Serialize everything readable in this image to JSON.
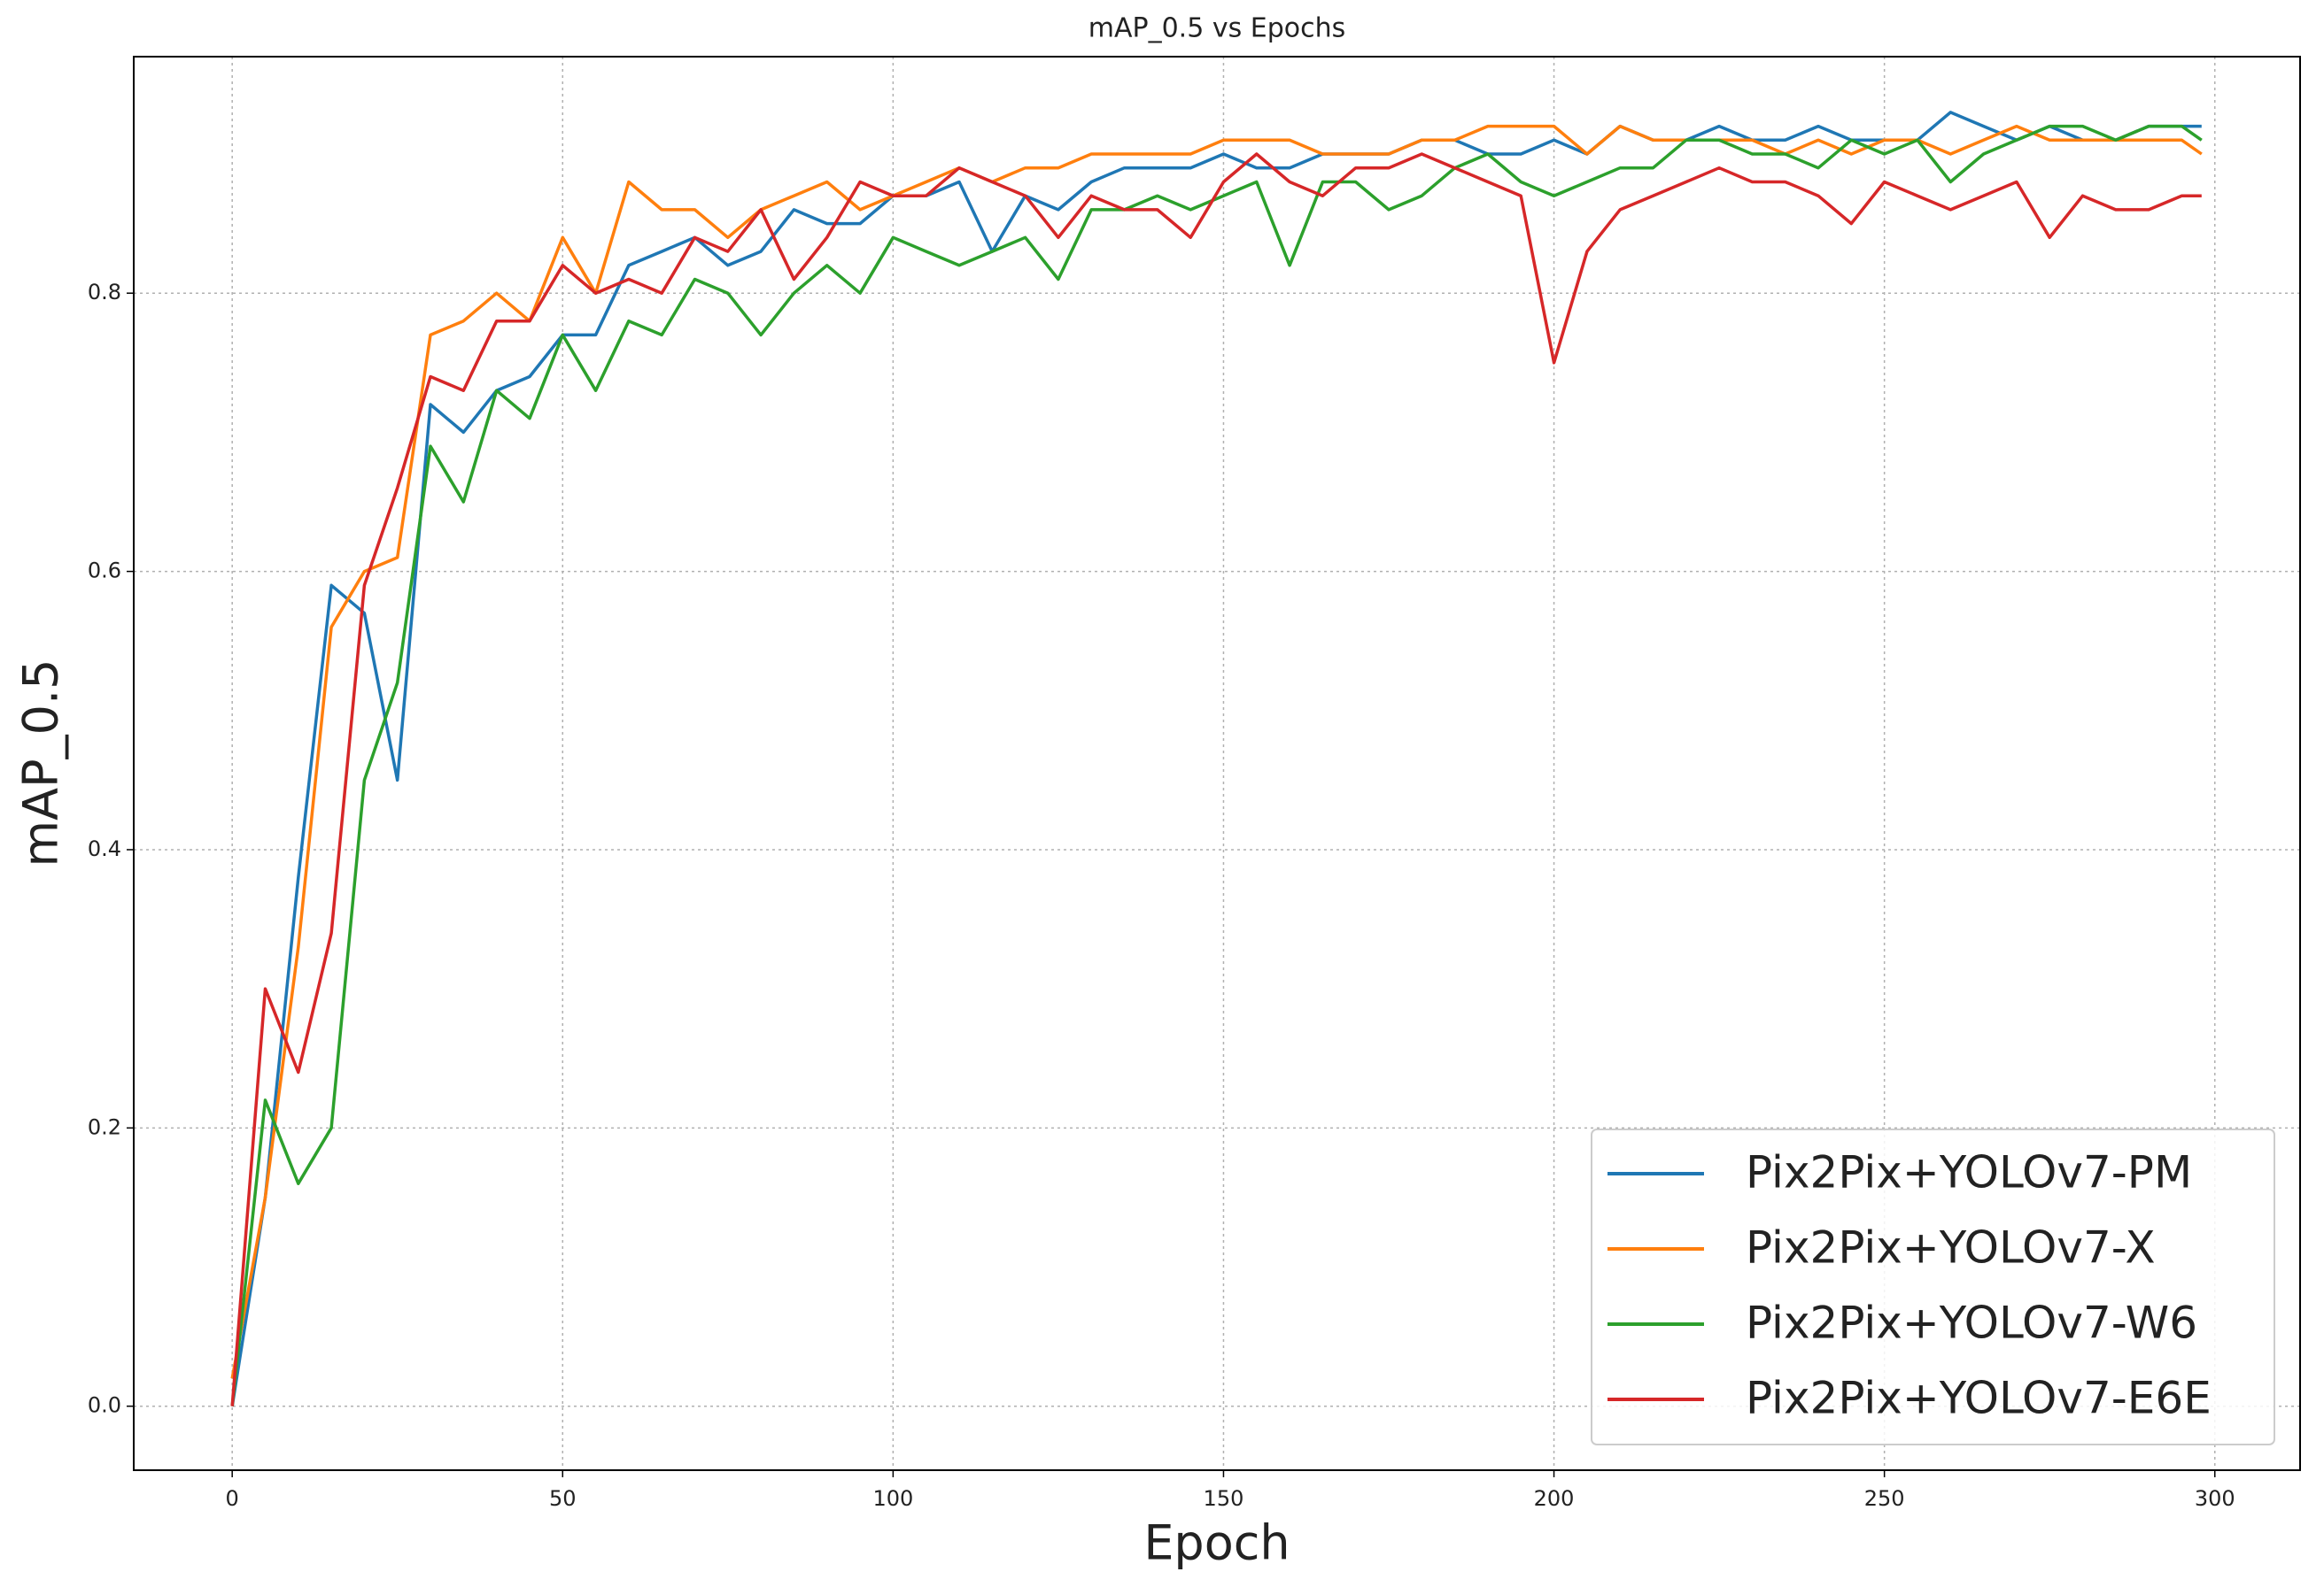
{
  "chart_data": {
    "type": "line",
    "title": "mAP_0.5 vs Epochs",
    "x_label": "Epoch",
    "y_label": "mAP_0.5",
    "x": [
      0,
      5,
      10,
      15,
      20,
      25,
      30,
      35,
      40,
      45,
      50,
      55,
      60,
      65,
      70,
      75,
      80,
      85,
      90,
      95,
      100,
      105,
      110,
      115,
      120,
      125,
      130,
      135,
      140,
      145,
      150,
      155,
      160,
      165,
      170,
      175,
      180,
      185,
      190,
      195,
      200,
      205,
      210,
      215,
      220,
      225,
      230,
      235,
      240,
      245,
      250,
      255,
      260,
      265,
      270,
      275,
      280,
      285,
      290,
      295,
      298
    ],
    "series": [
      {
        "name": "Pix2Pix+YOLOv7-PM",
        "color": "#1f77b4",
        "values": [
          0,
          0.15,
          0.38,
          0.59,
          0.57,
          0.45,
          0.72,
          0.7,
          0.73,
          0.74,
          0.77,
          0.77,
          0.82,
          0.83,
          0.84,
          0.82,
          0.83,
          0.86,
          0.85,
          0.85,
          0.87,
          0.87,
          0.88,
          0.83,
          0.87,
          0.86,
          0.88,
          0.89,
          0.89,
          0.89,
          0.9,
          0.89,
          0.89,
          0.9,
          0.9,
          0.9,
          0.91,
          0.91,
          0.9,
          0.9,
          0.91,
          0.9,
          0.92,
          0.91,
          0.91,
          0.92,
          0.91,
          0.91,
          0.92,
          0.91,
          0.91,
          0.91,
          0.93,
          0.92,
          0.91,
          0.92,
          0.91,
          0.91,
          0.92,
          0.92,
          0.92
        ]
      },
      {
        "name": "Pix2Pix+YOLOv7-X",
        "color": "#ff7f0e",
        "values": [
          0.02,
          0.15,
          0.33,
          0.56,
          0.6,
          0.61,
          0.77,
          0.78,
          0.8,
          0.78,
          0.84,
          0.8,
          0.88,
          0.86,
          0.86,
          0.84,
          0.86,
          0.87,
          0.88,
          0.86,
          0.87,
          0.88,
          0.89,
          0.88,
          0.89,
          0.89,
          0.9,
          0.9,
          0.9,
          0.9,
          0.91,
          0.91,
          0.91,
          0.9,
          0.9,
          0.9,
          0.91,
          0.91,
          0.92,
          0.92,
          0.92,
          0.9,
          0.92,
          0.91,
          0.91,
          0.91,
          0.91,
          0.9,
          0.91,
          0.9,
          0.91,
          0.91,
          0.9,
          0.91,
          0.92,
          0.91,
          0.91,
          0.91,
          0.91,
          0.91,
          0.9
        ]
      },
      {
        "name": "Pix2Pix+YOLOv7-W6",
        "color": "#2ca02c",
        "values": [
          0,
          0.22,
          0.16,
          0.2,
          0.45,
          0.52,
          0.69,
          0.65,
          0.73,
          0.71,
          0.77,
          0.73,
          0.78,
          0.77,
          0.81,
          0.8,
          0.77,
          0.8,
          0.82,
          0.8,
          0.84,
          0.83,
          0.82,
          0.83,
          0.84,
          0.81,
          0.86,
          0.86,
          0.87,
          0.86,
          0.87,
          0.88,
          0.82,
          0.88,
          0.88,
          0.86,
          0.87,
          0.89,
          0.9,
          0.88,
          0.87,
          0.88,
          0.89,
          0.89,
          0.91,
          0.91,
          0.9,
          0.9,
          0.89,
          0.91,
          0.9,
          0.91,
          0.88,
          0.9,
          0.91,
          0.92,
          0.92,
          0.91,
          0.92,
          0.92,
          0.91
        ]
      },
      {
        "name": "Pix2Pix+YOLOv7-E6E",
        "color": "#d62728",
        "values": [
          0,
          0.3,
          0.24,
          0.34,
          0.59,
          0.66,
          0.74,
          0.73,
          0.78,
          0.78,
          0.82,
          0.8,
          0.81,
          0.8,
          0.84,
          0.83,
          0.86,
          0.81,
          0.84,
          0.88,
          0.87,
          0.87,
          0.89,
          0.88,
          0.87,
          0.84,
          0.87,
          0.86,
          0.86,
          0.84,
          0.88,
          0.9,
          0.88,
          0.87,
          0.89,
          0.89,
          0.9,
          0.89,
          0.88,
          0.87,
          0.75,
          0.83,
          0.86,
          0.87,
          0.88,
          0.89,
          0.88,
          0.88,
          0.87,
          0.85,
          0.88,
          0.87,
          0.86,
          0.87,
          0.88,
          0.84,
          0.87,
          0.86,
          0.86,
          0.87,
          0.87
        ]
      }
    ],
    "xlim": [
      -14.9,
      312.9
    ],
    "ylim": [
      -0.046,
      0.97
    ],
    "xticks": [
      0,
      50,
      100,
      150,
      200,
      250,
      300
    ],
    "yticks": [
      {
        "value": 0,
        "label": "0.0"
      },
      0.2,
      0.4,
      0.6,
      0.8
    ],
    "grid": true,
    "legend": "lower right"
  }
}
